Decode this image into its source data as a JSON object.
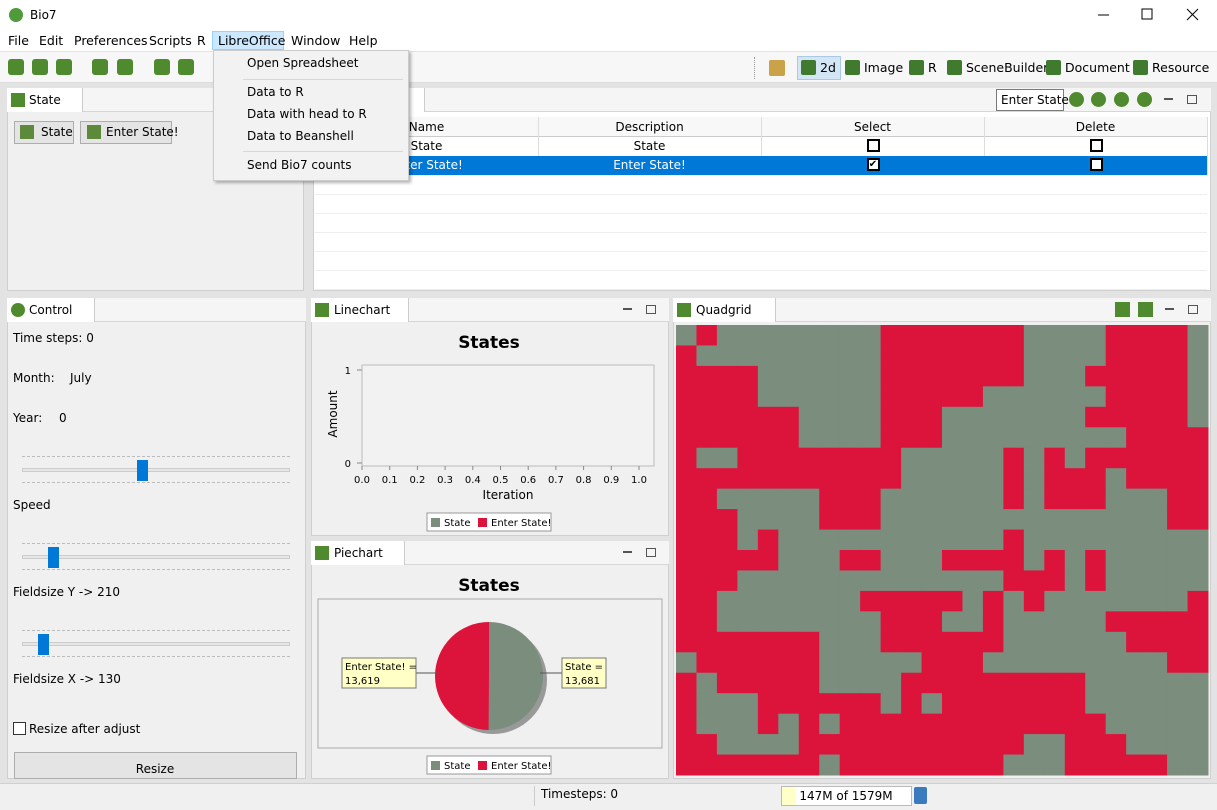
{
  "window": {
    "title": "Bio7"
  },
  "menu": [
    "File",
    "Edit",
    "Preferences",
    "Scripts",
    "R",
    "LibreOffice",
    "Window",
    "Help"
  ],
  "dropdown": [
    "Open Spreadsheet",
    "Data to R",
    "Data with head to R",
    "Data to Beanshell",
    "Send Bio7 counts"
  ],
  "perspectives": [
    "2d",
    "Image",
    "R",
    "SceneBuilder",
    "Document",
    "Resource"
  ],
  "state_view": {
    "tab": "State",
    "buttons": [
      "State",
      "Enter State!"
    ]
  },
  "table_view": {
    "input": "Enter State!",
    "columns": [
      "Name",
      "Description",
      "Select",
      "Delete"
    ],
    "rows": [
      [
        "State",
        "State"
      ],
      [
        "Enter State!",
        "Enter State!"
      ]
    ],
    "checked": [
      [
        false,
        false
      ],
      [
        true,
        false
      ]
    ]
  },
  "control": {
    "tab": "Control",
    "time_steps": "Time steps: 0",
    "month_label": "Month:",
    "month": "July",
    "year_label": "Year:",
    "year": "0",
    "speed": "Speed",
    "fieldsize_y": "Fieldsize Y -> 210",
    "fieldsize_x": "Fieldsize X -> 130",
    "resize_check": "Resize after adjust",
    "resize_button": "Resize"
  },
  "linechart": {
    "tab": "Linechart",
    "type": "line",
    "title": "States",
    "ylabel": "Amount",
    "xlabel": "Iteration",
    "xlim": [
      0,
      1
    ],
    "xticks": [
      {
        "value": 0,
        "label": "0.0"
      },
      0.1,
      0.2,
      0.3,
      0.4,
      0.5,
      0.6,
      0.7,
      0.8,
      0.9,
      {
        "value": 1,
        "label": "1.0"
      }
    ],
    "ylim": [
      0,
      1
    ],
    "yticks": [
      0,
      1
    ],
    "series": [
      {
        "name": "State",
        "color": "#7b8d7d"
      },
      {
        "name": "Enter State!",
        "color": "#dc143c"
      }
    ]
  },
  "piechart": {
    "tab": "Piechart",
    "type": "pie",
    "title": "States",
    "categories": [
      "State",
      "Enter State!"
    ],
    "values": [
      13681,
      13619
    ],
    "value_labels": [
      "13,681",
      "13,619"
    ],
    "callouts": [
      "State =",
      "Enter State! ="
    ],
    "colors": [
      "#7b8d7d",
      "#dc143c"
    ]
  },
  "quadgrid": {
    "tab": "Quadgrid",
    "colors": [
      "#7b8d7d",
      "#dc143c"
    ]
  },
  "status": {
    "timesteps": "Timesteps: 0",
    "memory": "147M of 1579M"
  }
}
